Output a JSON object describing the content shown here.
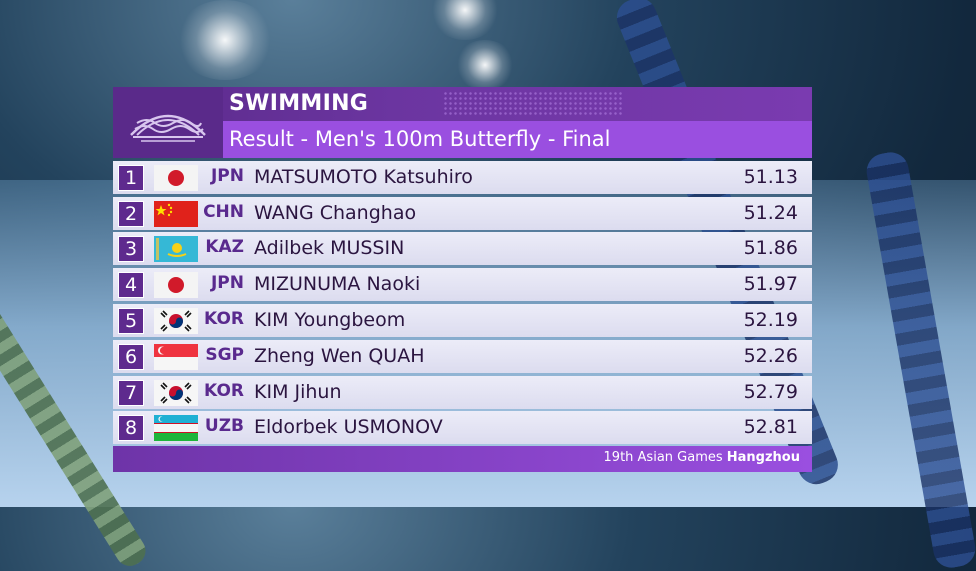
{
  "header": {
    "title": "SWIMMING",
    "subtitle": "Result - Men's 100m Butterfly - Final",
    "logo": "asian-games-logo-icon"
  },
  "results": [
    {
      "rank": "1",
      "noc": "JPN",
      "name": "MATSUMOTO Katsuhiro",
      "time": "51.13",
      "flag": "jpn-flag-icon"
    },
    {
      "rank": "2",
      "noc": "CHN",
      "name": "WANG Changhao",
      "time": "51.24",
      "flag": "chn-flag-icon"
    },
    {
      "rank": "3",
      "noc": "KAZ",
      "name": "Adilbek MUSSIN",
      "time": "51.86",
      "flag": "kaz-flag-icon"
    },
    {
      "rank": "4",
      "noc": "JPN",
      "name": "MIZUNUMA Naoki",
      "time": "51.97",
      "flag": "jpn-flag-icon"
    },
    {
      "rank": "5",
      "noc": "KOR",
      "name": "KIM Youngbeom",
      "time": "52.19",
      "flag": "kor-flag-icon"
    },
    {
      "rank": "6",
      "noc": "SGP",
      "name": "Zheng Wen QUAH",
      "time": "52.26",
      "flag": "sgp-flag-icon"
    },
    {
      "rank": "7",
      "noc": "KOR",
      "name": "KIM Jihun",
      "time": "52.79",
      "flag": "kor-flag-icon"
    },
    {
      "rank": "8",
      "noc": "UZB",
      "name": "Eldorbek USMONOV",
      "time": "52.81",
      "flag": "uzb-flag-icon"
    }
  ],
  "footer": {
    "text": "19th Asian Games ",
    "city": "Hangzhou"
  },
  "colors": {
    "header_dark": "#5a2a8a",
    "header_light": "#9a4fe0",
    "row_bg": "#e6e6f4",
    "rank_bg": "#5e2a8e",
    "noc_text": "#5a2a8e"
  }
}
